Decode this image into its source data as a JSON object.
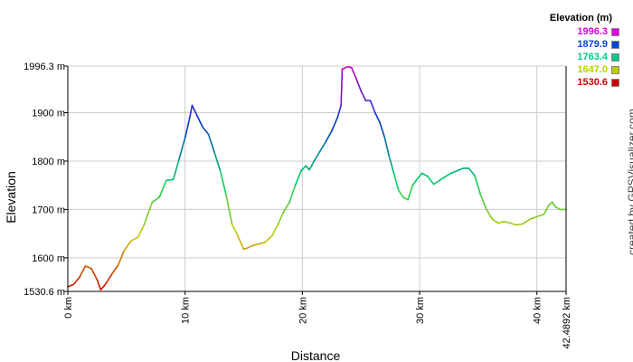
{
  "chart_data": {
    "type": "line",
    "xlabel": "Distance",
    "ylabel": "Elevation",
    "xlim": [
      0,
      42.4892
    ],
    "ylim": [
      1530.6,
      1996.3
    ],
    "x_ticks": [
      {
        "value": 0,
        "label": "0 km"
      },
      {
        "value": 10,
        "label": "10 km"
      },
      {
        "value": 20,
        "label": "20 km"
      },
      {
        "value": 30,
        "label": "30 km"
      },
      {
        "value": 40,
        "label": "40 km"
      },
      {
        "value": 42.4892,
        "label": "42.4892 km"
      }
    ],
    "y_ticks": [
      {
        "value": 1530.6,
        "label": "1530.6 m"
      },
      {
        "value": 1600,
        "label": "1600 m"
      },
      {
        "value": 1700,
        "label": "1700 m"
      },
      {
        "value": 1800,
        "label": "1800 m"
      },
      {
        "value": 1900,
        "label": "1900 m"
      },
      {
        "value": 1996.3,
        "label": "1996.3 m"
      }
    ],
    "grid": true,
    "color_scale": [
      {
        "value": 1530.6,
        "color": "#cc0000"
      },
      {
        "value": 1647.0,
        "color": "#cccc00"
      },
      {
        "value": 1763.4,
        "color": "#00cc66"
      },
      {
        "value": 1879.9,
        "color": "#0033cc"
      },
      {
        "value": 1996.3,
        "color": "#cc00cc"
      }
    ],
    "x": [
      0,
      0.5,
      1.0,
      1.5,
      2.0,
      2.5,
      2.8,
      3.2,
      3.8,
      4.3,
      4.8,
      5.4,
      6.0,
      6.5,
      7.2,
      7.8,
      8.4,
      9.0,
      9.5,
      10.0,
      10.4,
      10.6,
      11.0,
      11.5,
      12.0,
      12.5,
      13.0,
      13.5,
      14.0,
      14.5,
      15.0,
      15.3,
      15.7,
      16.2,
      16.8,
      17.4,
      17.9,
      18.4,
      18.9,
      19.4,
      19.9,
      20.3,
      20.6,
      21.0,
      21.5,
      22.0,
      22.5,
      23.0,
      23.3,
      23.4,
      23.6,
      23.9,
      24.2,
      24.6,
      25.0,
      25.4,
      25.8,
      26.2,
      26.6,
      27.0,
      27.4,
      27.8,
      28.2,
      28.6,
      29.0,
      29.4,
      29.7,
      30.2,
      30.7,
      31.2,
      31.7,
      32.2,
      32.7,
      33.2,
      33.7,
      34.2,
      34.7,
      35.2,
      35.7,
      36.2,
      36.7,
      37.2,
      37.7,
      38.2,
      38.8,
      39.4,
      40.0,
      40.6,
      41.0,
      41.3,
      41.6,
      42.0,
      42.4892
    ],
    "y": [
      1540,
      1545,
      1560,
      1583,
      1578,
      1555,
      1534,
      1545,
      1568,
      1585,
      1615,
      1635,
      1643,
      1668,
      1715,
      1725,
      1760,
      1762,
      1805,
      1848,
      1890,
      1915,
      1895,
      1870,
      1855,
      1818,
      1780,
      1730,
      1670,
      1645,
      1618,
      1620,
      1625,
      1628,
      1632,
      1645,
      1668,
      1695,
      1715,
      1750,
      1780,
      1790,
      1782,
      1800,
      1820,
      1840,
      1862,
      1890,
      1915,
      1990,
      1992,
      1995,
      1993,
      1970,
      1945,
      1925,
      1925,
      1900,
      1880,
      1850,
      1810,
      1775,
      1740,
      1725,
      1720,
      1750,
      1760,
      1775,
      1768,
      1752,
      1760,
      1768,
      1775,
      1780,
      1785,
      1785,
      1770,
      1730,
      1700,
      1680,
      1672,
      1675,
      1672,
      1668,
      1670,
      1680,
      1685,
      1690,
      1708,
      1715,
      1705,
      1700,
      1700
    ]
  },
  "legend": {
    "title": "Elevation (m)",
    "entries": [
      {
        "label": "1996.3",
        "color": "#dd00dd"
      },
      {
        "label": "1879.9",
        "color": "#0044dd"
      },
      {
        "label": "1763.4",
        "color": "#00cc88"
      },
      {
        "label": "1647.0",
        "color": "#bbcc00"
      },
      {
        "label": "1530.6",
        "color": "#cc0000"
      }
    ]
  },
  "credit": "created by GPSVisualizer.com"
}
